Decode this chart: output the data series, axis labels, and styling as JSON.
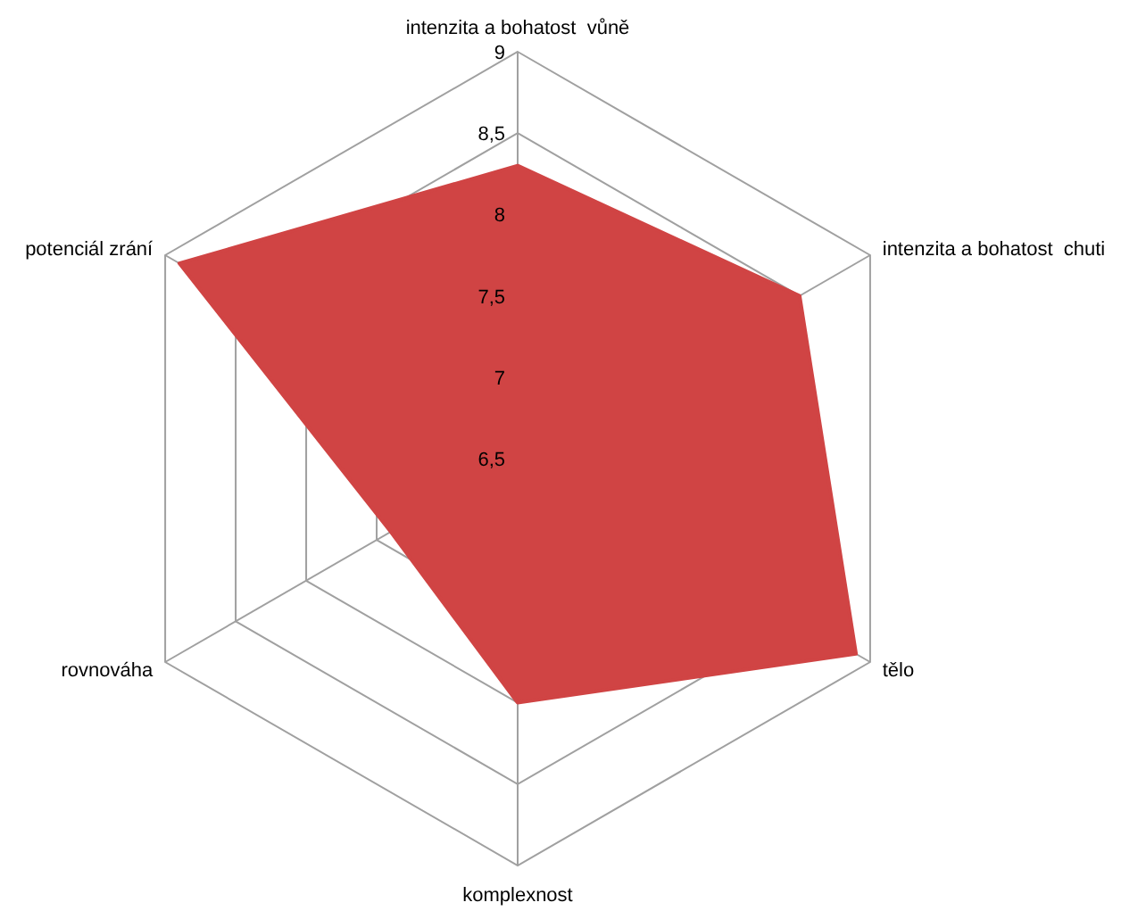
{
  "chart_data": {
    "type": "radar",
    "categories": [
      "intenzita a bohatost  vůně",
      "intenzita a bohatost  chuti",
      "tělo",
      "komplexnost",
      "rovnováha",
      "potenciál zrání"
    ],
    "series": [
      {
        "color": "#d04444",
        "values": [
          8.3,
          8.5,
          8.9,
          8.0,
          7.4,
          8.9
        ]
      }
    ],
    "ylim": [
      6.5,
      9
    ],
    "yticks": [
      {
        "value": 6.5,
        "label": "6,5"
      },
      7,
      {
        "value": 7.5,
        "label": "7,5"
      },
      8,
      {
        "value": 8.5,
        "label": "8,5"
      },
      9
    ]
  }
}
